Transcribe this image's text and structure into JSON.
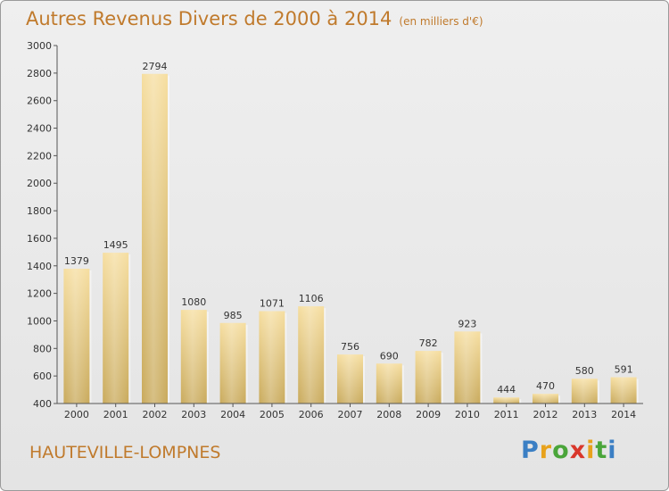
{
  "chart_data": {
    "type": "bar",
    "title": "Autres Revenus Divers de 2000 à 2014",
    "subtitle": "(en milliers d'€)",
    "categories": [
      "2000",
      "2001",
      "2002",
      "2003",
      "2004",
      "2005",
      "2006",
      "2007",
      "2008",
      "2009",
      "2010",
      "2011",
      "2012",
      "2013",
      "2014"
    ],
    "values": [
      1379,
      1495,
      2794,
      1080,
      985,
      1071,
      1106,
      756,
      690,
      782,
      923,
      444,
      470,
      580,
      591
    ],
    "ylim": [
      400,
      3000
    ],
    "yticks": [
      400,
      600,
      800,
      1000,
      1200,
      1400,
      1600,
      1800,
      2000,
      2200,
      2400,
      2600,
      2800,
      3000
    ],
    "xlabel": "",
    "ylabel": "",
    "grid": false,
    "bar_color": "#e8cf8a"
  },
  "location": "HAUTEVILLE-LOMPNES",
  "logo": {
    "letters": [
      "P",
      "r",
      "o",
      "x",
      "i",
      "t",
      "i"
    ],
    "colors": [
      "#3b7fc4",
      "#e8a21c",
      "#4aa53a",
      "#d9372b",
      "#e8a21c",
      "#4aa53a",
      "#3b7fc4"
    ]
  }
}
